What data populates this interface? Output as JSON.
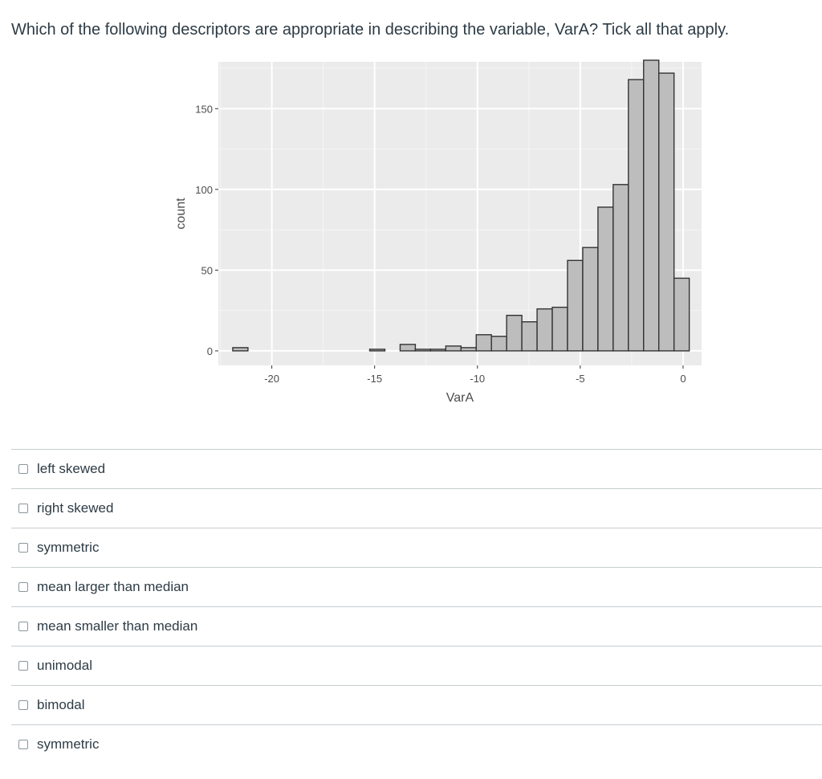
{
  "question": {
    "text": "Which of the following descriptors are appropriate in describing the variable, VarA? Tick all that apply."
  },
  "chart_data": {
    "type": "bar",
    "subtype": "histogram",
    "xlabel": "VarA",
    "ylabel": "count",
    "xlim": [
      -22.6,
      0.9
    ],
    "ylim": [
      -9,
      179
    ],
    "x_ticks": [
      -20,
      -15,
      -10,
      -5,
      0
    ],
    "x_tick_labels": [
      "-20",
      "-15",
      "-10",
      "-5",
      "0"
    ],
    "y_ticks": [
      0,
      50,
      100,
      150
    ],
    "y_tick_labels": [
      "0",
      "50",
      "100",
      "150"
    ],
    "bin_width": 0.74,
    "bin_start": -21.9,
    "counts": [
      2,
      0,
      0,
      0,
      0,
      0,
      0,
      0,
      0,
      1,
      0,
      4,
      1,
      1,
      3,
      2,
      10,
      9,
      22,
      18,
      26,
      27,
      56,
      64,
      89,
      103,
      168,
      180,
      172,
      45
    ],
    "grid": true,
    "panel_background": "#ebebeb",
    "bar_fill": "#bdbdbd",
    "bar_stroke": "#333333"
  },
  "answers": [
    {
      "label": "left skewed",
      "checked": false
    },
    {
      "label": "right skewed",
      "checked": false
    },
    {
      "label": "symmetric",
      "checked": false
    },
    {
      "label": "mean larger than median",
      "checked": false
    },
    {
      "label": "mean smaller than median",
      "checked": false
    },
    {
      "label": "unimodal",
      "checked": false
    },
    {
      "label": "bimodal",
      "checked": false
    },
    {
      "label": "symmetric",
      "checked": false
    }
  ]
}
